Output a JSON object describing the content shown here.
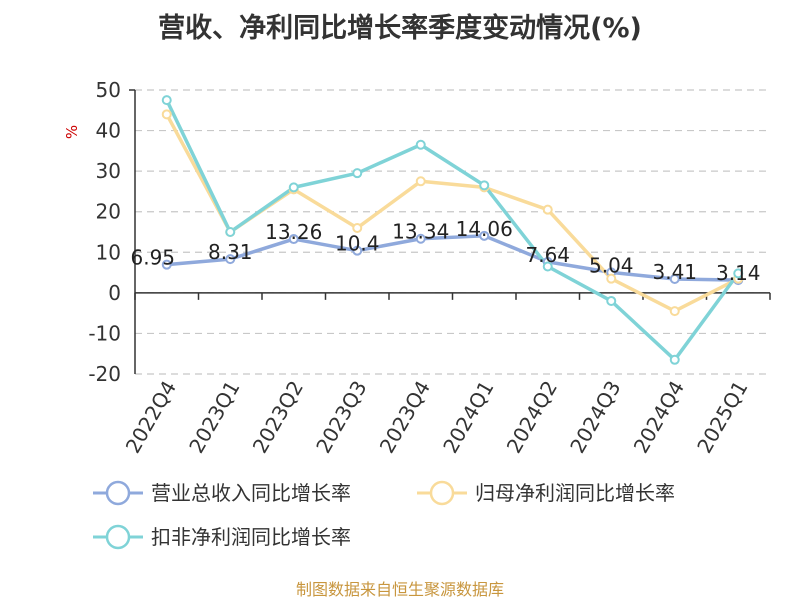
{
  "title": "营收、净利同比增长率季度变动情况(%)",
  "footer": "制图数据来自恒生聚源数据库",
  "chart_data": {
    "type": "line",
    "title": "营收、净利同比增长率季度变动情况(%)",
    "ylabel": "%",
    "ylim": [
      -20,
      50
    ],
    "yticks": [
      -20,
      -10,
      0,
      10,
      20,
      30,
      40,
      50
    ],
    "grid": true,
    "legend_position": "bottom",
    "categories": [
      "2022Q4",
      "2023Q1",
      "2023Q2",
      "2023Q3",
      "2023Q4",
      "2024Q1",
      "2024Q2",
      "2024Q3",
      "2024Q4",
      "2025Q1"
    ],
    "series": [
      {
        "name": "营业总收入同比增长率",
        "color": "#8fa9dc",
        "values": [
          6.95,
          8.31,
          13.26,
          10.4,
          13.34,
          14.06,
          7.64,
          5.04,
          3.41,
          3.14
        ],
        "labels": [
          "6.95",
          "8.31",
          "13.26",
          "10.4",
          "13.34",
          "14.06",
          "7.64",
          "5.04",
          "3.41",
          "3.14"
        ],
        "show_labels": true
      },
      {
        "name": "归母净利润同比增长率",
        "color": "#f9db9a",
        "values": [
          44,
          15,
          25.5,
          16,
          27.5,
          26,
          20.5,
          3.5,
          -4.5,
          3.5
        ],
        "show_labels": false
      },
      {
        "name": "扣非净利润同比增长率",
        "color": "#7fd3d7",
        "values": [
          47.5,
          15,
          26,
          29.5,
          36.5,
          26.5,
          6.5,
          -2,
          -16.5,
          4.8
        ],
        "show_labels": false
      }
    ]
  }
}
